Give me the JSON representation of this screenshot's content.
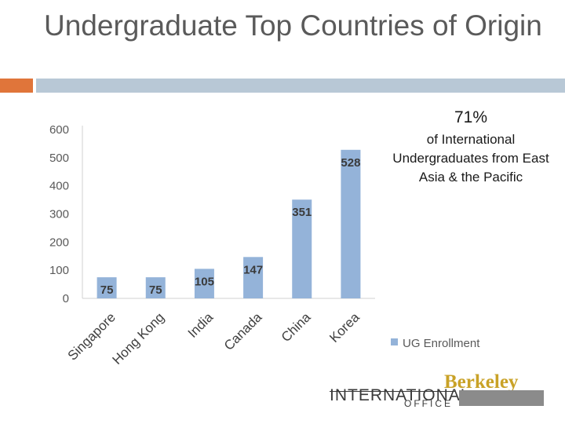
{
  "slide": {
    "title": "Undergraduate Top Countries of Origin",
    "stat_percent": "71%",
    "stat_text": "of International Undergraduates from East Asia & the Pacific"
  },
  "logo": {
    "word": "INTERNATIONAL",
    "office": "OFFICE",
    "berkeley": "Berkeley"
  },
  "colors": {
    "bar": "#94b3d9",
    "accent_orange": "#e0753a",
    "accent_blue": "#b8c8d6"
  },
  "chart_data": {
    "type": "bar",
    "categories": [
      "Singapore",
      "Hong Kong",
      "India",
      "Canada",
      "China",
      "Korea"
    ],
    "series": [
      {
        "name": "UG Enrollment",
        "values": [
          75,
          75,
          105,
          147,
          351,
          528
        ]
      }
    ],
    "data_labels": [
      "75",
      "75",
      "105",
      "147",
      "351",
      "528"
    ],
    "y_ticks": [
      "0",
      "100",
      "200",
      "300",
      "400",
      "500",
      "600"
    ],
    "ylim": [
      0,
      600
    ],
    "grid": false,
    "legend": "right"
  }
}
